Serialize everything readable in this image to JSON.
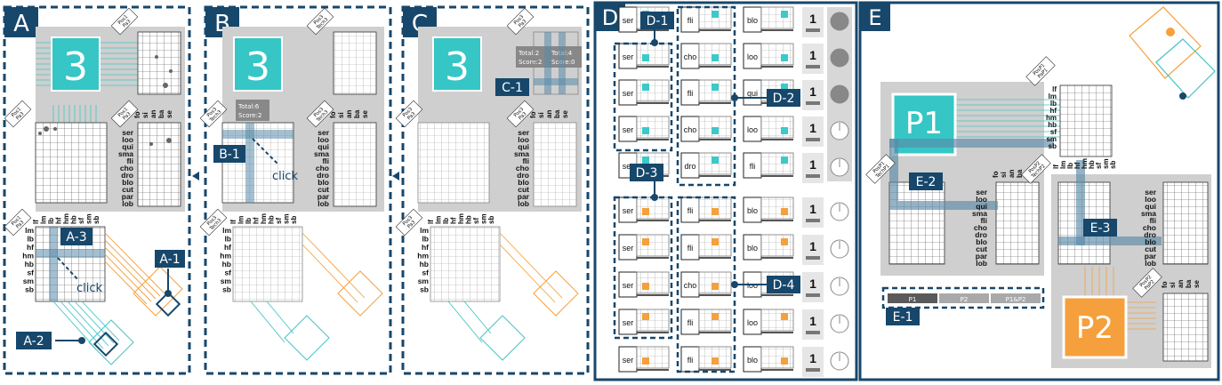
{
  "panels": {
    "A": "A",
    "B": "B",
    "C": "C",
    "D": "D",
    "E": "E"
  },
  "callouts": {
    "A1": "A-1",
    "A2": "A-2",
    "A3": "A-3",
    "B1": "B-1",
    "C1": "C-1",
    "D1": "D-1",
    "D2": "D-2",
    "D3": "D-3",
    "D4": "D-4",
    "E1": "E-1",
    "E2": "E-2",
    "E3": "E-3"
  },
  "matrix_number": "3",
  "texts": {
    "click": "click",
    "total6": "Total:6",
    "score2": "Score:2",
    "total2": "Total:2",
    "score2b": "Score:2",
    "total4": "Total:4",
    "score0": "Score:0",
    "p1": "P1",
    "p2": "P2"
  },
  "row_labels": [
    "ser",
    "loo",
    "qui",
    "sma",
    "fli",
    "cho",
    "dro",
    "blo",
    "cut",
    "par",
    "lob"
  ],
  "col_labels_top": [
    "fo",
    "si",
    "an",
    "ba",
    "se"
  ],
  "col_labels_bottom": [
    "lf",
    "lm",
    "lb",
    "hf",
    "hm",
    "hb",
    "sf",
    "sm",
    "sb"
  ],
  "diamond_labels": [
    "Pos1 Pa3",
    "Pos3 Tech3",
    "Pos3 Pa3"
  ],
  "d_rows": [
    {
      "c1": "ser",
      "c2": "fli",
      "c3": "blo",
      "count": "1"
    },
    {
      "c1": "ser",
      "c2": "cho",
      "c3": "loo",
      "count": "1"
    },
    {
      "c1": "ser",
      "c2": "fli",
      "c3": "qui",
      "count": "1"
    },
    {
      "c1": "ser",
      "c2": "cho",
      "c3": "loo",
      "count": "1"
    },
    {
      "c1": "ser",
      "c2": "dro",
      "c3": "fli",
      "count": "1"
    },
    {
      "c1": "ser",
      "c2": "fli",
      "c3": "blo",
      "count": "1"
    },
    {
      "c1": "ser",
      "c2": "fli",
      "c3": "blo",
      "count": "1"
    },
    {
      "c1": "ser",
      "c2": "cho",
      "c3": "loo",
      "count": "1"
    },
    {
      "c1": "ser",
      "c2": "fli",
      "c3": "loo",
      "count": "1"
    },
    {
      "c1": "ser",
      "c2": "fli",
      "c3": "blo",
      "count": "1"
    }
  ],
  "e1_segments": [
    "P1",
    "P2",
    "P1&P2"
  ],
  "e_diamond_labels": [
    "PosP1 PaP1",
    "PosP1 TechP1",
    "PosP2 TechP2",
    "PosP2 PaP2"
  ],
  "colors": {
    "navy": "#17476b",
    "teal": "#3cc9c9",
    "orange": "#f5a03c",
    "gray": "#c9c9c9",
    "border": "#1d5a84"
  }
}
